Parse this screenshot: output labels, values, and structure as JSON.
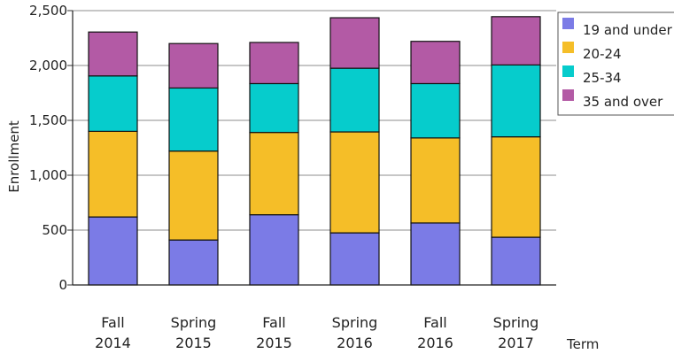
{
  "chart_data": {
    "type": "bar",
    "stacked": true,
    "categories": [
      [
        "Fall",
        "2014"
      ],
      [
        "Spring",
        "2015"
      ],
      [
        "Fall",
        "2015"
      ],
      [
        "Spring",
        "2016"
      ],
      [
        "Fall",
        "2016"
      ],
      [
        "Spring",
        "2017"
      ]
    ],
    "series": [
      {
        "name": "19 and under",
        "color": "#7b7be6",
        "values": [
          620,
          410,
          640,
          475,
          565,
          435
        ]
      },
      {
        "name": "20-24",
        "color": "#f5be28",
        "values": [
          780,
          810,
          750,
          920,
          775,
          915
        ]
      },
      {
        "name": "25-34",
        "color": "#06cccc",
        "values": [
          505,
          575,
          445,
          580,
          495,
          655
        ]
      },
      {
        "name": "35 and over",
        "color": "#b35aa5",
        "values": [
          400,
          405,
          375,
          460,
          385,
          440
        ]
      }
    ],
    "xlabel": "Term",
    "ylabel": "Enrollment",
    "ylim": [
      0,
      2500
    ],
    "yticks": [
      0,
      500,
      1000,
      1500,
      2000,
      2500
    ],
    "ytick_labels": [
      "0",
      "500",
      "1,000",
      "1,500",
      "2,000",
      "2,500"
    ],
    "grid": true,
    "legend_position": "top-right"
  }
}
